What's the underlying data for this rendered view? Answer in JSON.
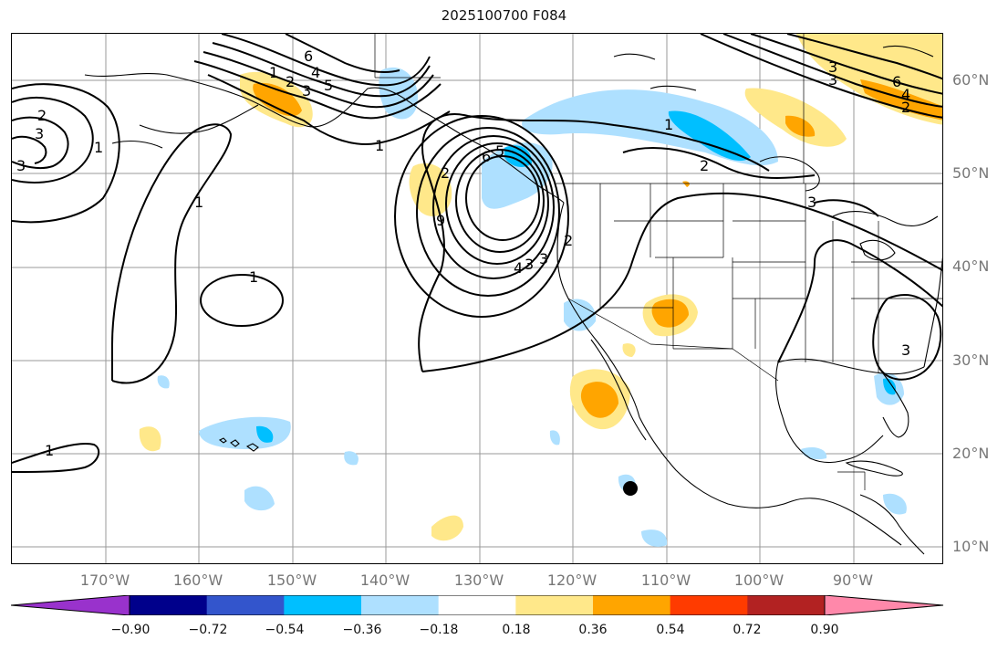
{
  "title": "2025100700 F084",
  "lat_labels": [
    "60°N",
    "50°N",
    "40°N",
    "30°N",
    "20°N",
    "10°N"
  ],
  "lon_labels": [
    "170°W",
    "160°W",
    "150°W",
    "140°W",
    "130°W",
    "120°W",
    "110°W",
    "100°W",
    "90°W"
  ],
  "colorbar": {
    "ticks": [
      "−0.90",
      "−0.72",
      "−0.54",
      "−0.36",
      "−0.18",
      "0.18",
      "0.36",
      "0.54",
      "0.72",
      "0.90"
    ],
    "colors": [
      "#9932cc",
      "#00008b",
      "#3355cc",
      "#00bfff",
      "#aee0ff",
      "#ffffff",
      "#ffe88a",
      "#ffa500",
      "#ff3b00",
      "#b22222",
      "#ff88aa"
    ]
  },
  "contour_labels": [
    "1",
    "2",
    "3",
    "4",
    "5",
    "6",
    "1",
    "2",
    "3",
    "1",
    "1",
    "1",
    "1",
    "2",
    "3",
    "4",
    "5",
    "6",
    "9",
    "3",
    "2",
    "1",
    "2",
    "3",
    "3",
    "6",
    "4",
    "2",
    "3",
    "3",
    "3"
  ],
  "legend_colors": {
    "line": "#000000",
    "grid": "#999999",
    "border": "#000000"
  }
}
